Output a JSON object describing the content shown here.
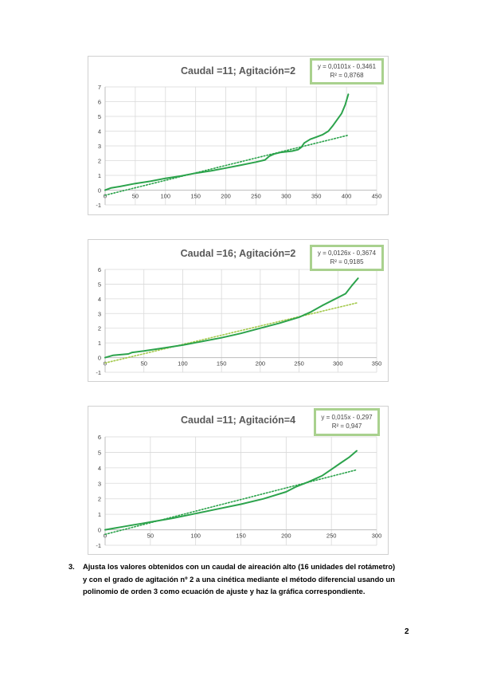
{
  "chart_data": [
    {
      "type": "line",
      "title": "Caudal =11; Agitación=2",
      "equation": "y = 0,0101x - 0,3461",
      "r2": "R² = 0,8768",
      "xlim": [
        0,
        450
      ],
      "ylim": [
        -1,
        7
      ],
      "xticks": [
        "0",
        "50",
        "100",
        "150",
        "200",
        "250",
        "300",
        "350",
        "400",
        "450"
      ],
      "yticks": [
        "-1",
        "0",
        "1",
        "2",
        "3",
        "4",
        "5",
        "6",
        "7"
      ],
      "grid": true,
      "series": [
        {
          "x": [
            0,
            10,
            25,
            50,
            75,
            100,
            125,
            150,
            175,
            200,
            225,
            250,
            265,
            272,
            280,
            290,
            300,
            310,
            320,
            325,
            330,
            340,
            350,
            360,
            370,
            378,
            385,
            392,
            398,
            403
          ],
          "y": [
            0,
            0.15,
            0.25,
            0.45,
            0.6,
            0.8,
            0.95,
            1.15,
            1.3,
            1.5,
            1.7,
            1.9,
            2.05,
            2.3,
            2.45,
            2.55,
            2.6,
            2.65,
            2.75,
            2.9,
            3.2,
            3.45,
            3.6,
            3.75,
            4.0,
            4.4,
            4.8,
            5.2,
            5.8,
            6.5
          ],
          "color": "#2ca34c"
        }
      ],
      "trendline": {
        "slope": 0.0101,
        "intercept": -0.3461,
        "x_range": [
          0,
          403
        ],
        "color": "#2ca34c"
      }
    },
    {
      "type": "line",
      "title": "Caudal =16; Agitación=2",
      "equation": "y = 0,0126x - 0,3674",
      "r2": "R² = 0,9185",
      "xlim": [
        0,
        350
      ],
      "ylim": [
        -1,
        6
      ],
      "xticks": [
        "0",
        "50",
        "100",
        "150",
        "200",
        "250",
        "300",
        "350"
      ],
      "yticks": [
        "-1",
        "0",
        "1",
        "2",
        "3",
        "4",
        "5",
        "6"
      ],
      "grid": true,
      "series": [
        {
          "x": [
            0,
            10,
            20,
            30,
            35,
            50,
            75,
            100,
            125,
            150,
            175,
            200,
            225,
            250,
            265,
            280,
            295,
            310,
            318,
            326
          ],
          "y": [
            0,
            0.15,
            0.2,
            0.25,
            0.35,
            0.45,
            0.65,
            0.85,
            1.1,
            1.35,
            1.65,
            2.0,
            2.35,
            2.75,
            3.1,
            3.55,
            3.95,
            4.35,
            4.9,
            5.4
          ],
          "color": "#2ca34c"
        }
      ],
      "trendline": {
        "slope": 0.0126,
        "intercept": -0.3674,
        "x_range": [
          0,
          326
        ],
        "color": "#a3c94a"
      }
    },
    {
      "type": "line",
      "title": "Caudal =11; Agitación=4",
      "equation": "y = 0,015x - 0,297",
      "r2": "R² = 0,947",
      "xlim": [
        0,
        300
      ],
      "ylim": [
        -1,
        6
      ],
      "xticks": [
        "0",
        "50",
        "100",
        "150",
        "200",
        "250",
        "300"
      ],
      "yticks": [
        "-1",
        "0",
        "1",
        "2",
        "3",
        "4",
        "5",
        "6"
      ],
      "grid": true,
      "series": [
        {
          "x": [
            0,
            10,
            20,
            30,
            40,
            50,
            75,
            100,
            125,
            150,
            175,
            200,
            210,
            225,
            240,
            250,
            260,
            270,
            278
          ],
          "y": [
            0,
            0.1,
            0.2,
            0.3,
            0.4,
            0.5,
            0.75,
            1.05,
            1.35,
            1.65,
            2.0,
            2.45,
            2.75,
            3.1,
            3.5,
            3.9,
            4.3,
            4.7,
            5.1
          ],
          "color": "#2ca34c"
        }
      ],
      "trendline": {
        "slope": 0.015,
        "intercept": -0.297,
        "x_range": [
          0,
          278
        ],
        "color": "#2ca34c"
      }
    }
  ],
  "question": {
    "number": "3.",
    "lines": [
      "Ajusta los valores obtenidos con un caudal de aireación alto (16 unidades del rotámetro)",
      "y con el grado de agitación nº 2 a una cinética mediante el método diferencial usando un",
      "polinomio de orden 3 como ecuación de ajuste y haz la gráfica correspondiente."
    ]
  },
  "page_number": "2"
}
